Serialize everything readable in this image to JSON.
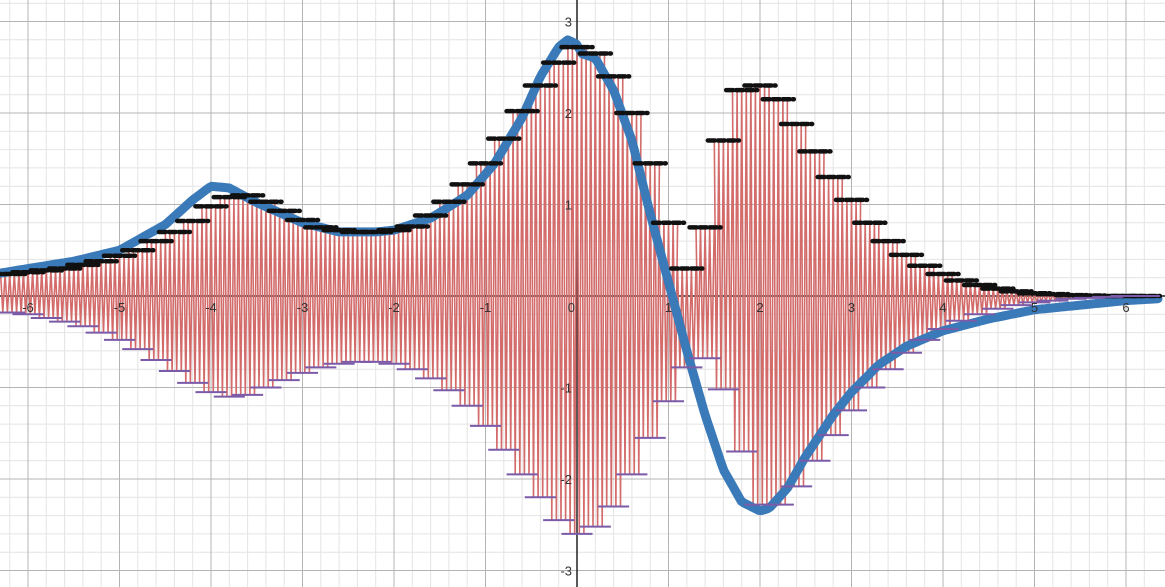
{
  "chart_data": {
    "type": "line",
    "title": "",
    "xlabel": "",
    "ylabel": "",
    "xlim": [
      -6.3,
      6.35
    ],
    "ylim": [
      -3.2,
      3.2
    ],
    "grid": true,
    "x_ticks": [
      -6,
      -5,
      -4,
      -3,
      -2,
      -1,
      1,
      2,
      3,
      4,
      5,
      6
    ],
    "x_tick_labels": [
      "-6",
      "-5",
      "-4",
      "-3",
      "-2",
      "-1",
      "1",
      "2",
      "3",
      "4",
      "5",
      "6"
    ],
    "y_ticks": [
      -3,
      -2,
      -1,
      1,
      2,
      3
    ],
    "y_tick_labels": [
      "-3",
      "-2",
      "-1",
      "1",
      "2",
      "3"
    ],
    "origin_label": "0",
    "colors": {
      "curve": "#3b7ab8",
      "oscillation": "#d36b6b",
      "upper_step": "#111111",
      "lower_step": "#7b5ba8",
      "grid_minor": "#e4e4e4",
      "grid_major": "#b4b4b4",
      "axis": "#222222"
    },
    "series": [
      {
        "role": "curve",
        "x": [
          -6.3,
          -6.0,
          -5.5,
          -5.0,
          -4.5,
          -4.2,
          -4.0,
          -3.8,
          -3.5,
          -3.0,
          -2.6,
          -2.2,
          -2.0,
          -1.6,
          -1.2,
          -0.9,
          -0.6,
          -0.4,
          -0.2,
          -0.1,
          0.0,
          0.05,
          0.2,
          0.4,
          0.6,
          0.8,
          1.0,
          1.2,
          1.4,
          1.6,
          1.8,
          2.0,
          2.1,
          2.3,
          2.5,
          2.8,
          3.0,
          3.3,
          3.6,
          4.0,
          4.5,
          5.0,
          5.5,
          6.0,
          6.35
        ],
        "y": [
          0.25,
          0.3,
          0.38,
          0.5,
          0.78,
          1.05,
          1.2,
          1.18,
          1.02,
          0.8,
          0.7,
          0.7,
          0.72,
          0.85,
          1.1,
          1.45,
          1.95,
          2.4,
          2.72,
          2.8,
          2.75,
          2.65,
          2.6,
          2.25,
          1.7,
          0.9,
          0.15,
          -0.6,
          -1.3,
          -1.9,
          -2.25,
          -2.35,
          -2.32,
          -2.1,
          -1.75,
          -1.3,
          -1.05,
          -0.75,
          -0.55,
          -0.38,
          -0.25,
          -0.15,
          -0.1,
          -0.05,
          -0.03
        ]
      },
      {
        "role": "upper_step",
        "x": [
          -6.2,
          -6.0,
          -5.8,
          -5.6,
          -5.4,
          -5.2,
          -5.0,
          -4.8,
          -4.6,
          -4.4,
          -4.2,
          -4.0,
          -3.8,
          -3.6,
          -3.4,
          -3.2,
          -3.0,
          -2.8,
          -2.6,
          -2.4,
          -2.2,
          -2.0,
          -1.8,
          -1.6,
          -1.4,
          -1.2,
          -1.0,
          -0.8,
          -0.6,
          -0.4,
          -0.2,
          0.0,
          0.2,
          0.4,
          0.6,
          0.8,
          1.0,
          1.2,
          1.4,
          1.6,
          1.8,
          2.0,
          2.2,
          2.4,
          2.6,
          2.8,
          3.0,
          3.2,
          3.4,
          3.6,
          3.8,
          4.0,
          4.2,
          4.4,
          4.6,
          4.8,
          5.0,
          5.2,
          5.4,
          5.6,
          5.8,
          6.0,
          6.2
        ],
        "y": [
          0.24,
          0.26,
          0.28,
          0.3,
          0.34,
          0.38,
          0.44,
          0.5,
          0.6,
          0.7,
          0.82,
          0.98,
          1.08,
          1.1,
          1.03,
          0.93,
          0.83,
          0.75,
          0.72,
          0.7,
          0.7,
          0.72,
          0.76,
          0.88,
          1.03,
          1.22,
          1.45,
          1.72,
          2.02,
          2.3,
          2.55,
          2.72,
          2.65,
          2.4,
          2.0,
          1.45,
          0.8,
          0.3,
          0.75,
          1.7,
          2.25,
          2.3,
          2.15,
          1.88,
          1.58,
          1.3,
          1.05,
          0.8,
          0.6,
          0.45,
          0.33,
          0.24,
          0.17,
          0.12,
          0.08,
          0.05,
          0.03,
          0.02,
          0.01,
          0.005,
          0.0,
          0.0,
          0.0
        ]
      },
      {
        "role": "lower_step",
        "x": [
          -6.2,
          -6.0,
          -5.8,
          -5.6,
          -5.4,
          -5.2,
          -5.0,
          -4.8,
          -4.6,
          -4.4,
          -4.2,
          -4.0,
          -3.8,
          -3.6,
          -3.4,
          -3.2,
          -3.0,
          -2.8,
          -2.6,
          -2.4,
          -2.2,
          -2.0,
          -1.8,
          -1.6,
          -1.4,
          -1.2,
          -1.0,
          -0.8,
          -0.6,
          -0.4,
          -0.2,
          0.0,
          0.2,
          0.4,
          0.6,
          0.8,
          1.0,
          1.2,
          1.4,
          1.6,
          1.8,
          2.0,
          2.2,
          2.4,
          2.6,
          2.8,
          3.0,
          3.2,
          3.4,
          3.6,
          3.8,
          4.0,
          4.2,
          4.4,
          4.6,
          4.8,
          5.0,
          5.2,
          5.4,
          5.6,
          5.8,
          6.0,
          6.2
        ],
        "y": [
          -0.18,
          -0.2,
          -0.24,
          -0.28,
          -0.33,
          -0.4,
          -0.48,
          -0.58,
          -0.7,
          -0.82,
          -0.95,
          -1.05,
          -1.1,
          -1.08,
          -1.0,
          -0.92,
          -0.84,
          -0.78,
          -0.74,
          -0.72,
          -0.72,
          -0.74,
          -0.8,
          -0.9,
          -1.03,
          -1.2,
          -1.42,
          -1.68,
          -1.95,
          -2.2,
          -2.45,
          -2.6,
          -2.52,
          -2.3,
          -1.95,
          -1.55,
          -1.15,
          -0.78,
          -0.68,
          -1.02,
          -1.7,
          -2.28,
          -2.28,
          -2.08,
          -1.8,
          -1.52,
          -1.25,
          -1.0,
          -0.8,
          -0.62,
          -0.48,
          -0.36,
          -0.27,
          -0.2,
          -0.14,
          -0.1,
          -0.07,
          -0.05,
          -0.03,
          -0.02,
          -0.01,
          0.0,
          0.0
        ]
      }
    ]
  }
}
